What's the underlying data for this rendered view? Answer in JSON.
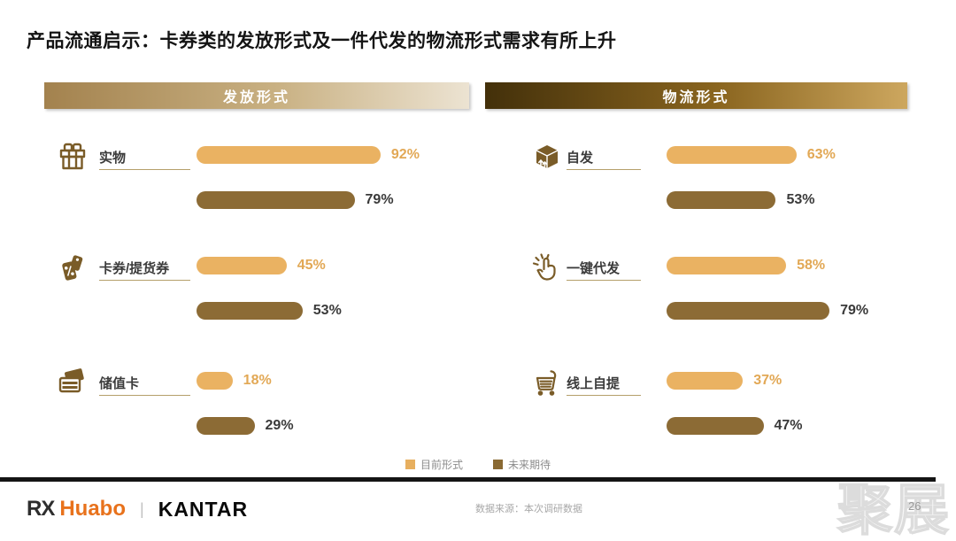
{
  "slide": {
    "title": "产品流通启示：卡券类的发放形式及一件代发的物流形式需求有所上升",
    "source_note": "数据来源：本次调研数据",
    "page_number": "26",
    "watermark": "聚展"
  },
  "panels": [
    {
      "header": "发放形式",
      "rows": [
        {
          "icon": "gift-icon",
          "label": "实物",
          "current": 92,
          "current_label": "92%",
          "future": 79,
          "future_label": "79%"
        },
        {
          "icon": "coupon-icon",
          "label": "卡券/提货券",
          "current": 45,
          "current_label": "45%",
          "future": 53,
          "future_label": "53%"
        },
        {
          "icon": "stored-value-card-icon",
          "label": "储值卡",
          "current": 18,
          "current_label": "18%",
          "future": 29,
          "future_label": "29%"
        }
      ]
    },
    {
      "header": "物流形式",
      "rows": [
        {
          "icon": "package-icon",
          "label": "自发",
          "current": 63,
          "current_label": "63%",
          "future": 53,
          "future_label": "53%"
        },
        {
          "icon": "click-icon",
          "label": "一键代发",
          "current": 58,
          "current_label": "58%",
          "future": 79,
          "future_label": "79%"
        },
        {
          "icon": "cart-icon",
          "label": "线上自提",
          "current": 37,
          "current_label": "37%",
          "future": 47,
          "future_label": "47%"
        }
      ]
    }
  ],
  "legend": {
    "items": [
      {
        "label": "目前形式",
        "color": "#E7AF5F"
      },
      {
        "label": "未来期待",
        "color": "#8A6A33"
      }
    ]
  },
  "footer": {
    "logo_rx": "RX",
    "logo_huabo": "Huabo",
    "separator": "|",
    "logo_kantar": "KANTAR"
  },
  "colors": {
    "bar_current": "#EAB262",
    "bar_future": "#8C6B35",
    "pct_current": "#E2A855",
    "pct_future": "#3A3A3A",
    "icon_brown": "#7A5C28",
    "header_left_gradient": [
      "#a3824e",
      "#ece3d2"
    ],
    "header_right_gradient": [
      "#43300a",
      "#cda75f"
    ]
  },
  "chart_data": [
    {
      "type": "bar",
      "orientation": "horizontal",
      "title": "发放形式",
      "categories": [
        "实物",
        "卡券/提货券",
        "储值卡"
      ],
      "series": [
        {
          "name": "目前形式",
          "values": [
            92,
            45,
            18
          ]
        },
        {
          "name": "未来期待",
          "values": [
            79,
            53,
            29
          ]
        }
      ],
      "unit": "%",
      "xlim": [
        0,
        100
      ],
      "legend_position": "bottom-center",
      "grid": false
    },
    {
      "type": "bar",
      "orientation": "horizontal",
      "title": "物流形式",
      "categories": [
        "自发",
        "一键代发",
        "线上自提"
      ],
      "series": [
        {
          "name": "目前形式",
          "values": [
            63,
            58,
            37
          ]
        },
        {
          "name": "未来期待",
          "values": [
            53,
            79,
            47
          ]
        }
      ],
      "unit": "%",
      "xlim": [
        0,
        100
      ],
      "legend_position": "bottom-center",
      "grid": false
    }
  ]
}
